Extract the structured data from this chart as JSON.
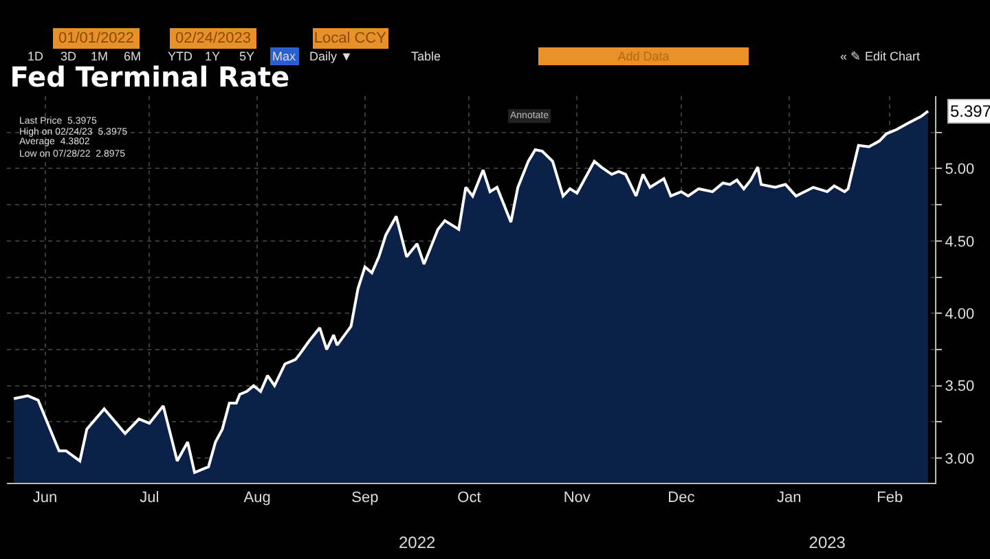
{
  "chart_data": {
    "type": "area",
    "title": "Fed Terminal Rate",
    "x": [
      "2022-06-06",
      "2022-06-10",
      "2022-06-13",
      "2022-06-19",
      "2022-06-21",
      "2022-06-25",
      "2022-06-27",
      "2022-07-02",
      "2022-07-08",
      "2022-07-12",
      "2022-07-15",
      "2022-07-19",
      "2022-07-23",
      "2022-07-26",
      "2022-07-28",
      "2022-08-01",
      "2022-08-03",
      "2022-08-05",
      "2022-08-07",
      "2022-08-09",
      "2022-08-10",
      "2022-08-12",
      "2022-08-14",
      "2022-08-16",
      "2022-08-18",
      "2022-08-20",
      "2022-08-23",
      "2022-08-26",
      "2022-08-27",
      "2022-08-30",
      "2022-09-02",
      "2022-09-04",
      "2022-09-06",
      "2022-09-07",
      "2022-09-11",
      "2022-09-13",
      "2022-09-15",
      "2022-09-17",
      "2022-09-19",
      "2022-09-21",
      "2022-09-24",
      "2022-09-27",
      "2022-09-30",
      "2022-10-02",
      "2022-10-06",
      "2022-10-08",
      "2022-10-12",
      "2022-10-14",
      "2022-10-16",
      "2022-10-19",
      "2022-10-21",
      "2022-10-23",
      "2022-10-27",
      "2022-10-29",
      "2022-11-01",
      "2022-11-03",
      "2022-11-05",
      "2022-11-08",
      "2022-11-11",
      "2022-11-13",
      "2022-11-15",
      "2022-11-20",
      "2022-11-22",
      "2022-11-25",
      "2022-11-27",
      "2022-11-29",
      "2022-12-02",
      "2022-12-04",
      "2022-12-06",
      "2022-12-10",
      "2022-12-12",
      "2022-12-15",
      "2022-12-17",
      "2022-12-20",
      "2022-12-24",
      "2022-12-27",
      "2022-12-29",
      "2022-12-31",
      "2023-01-02",
      "2023-01-04",
      "2023-01-06",
      "2023-01-07",
      "2023-01-11",
      "2023-01-14",
      "2023-01-17",
      "2023-01-22",
      "2023-01-26",
      "2023-01-28",
      "2023-01-31",
      "2023-02-01",
      "2023-02-04",
      "2023-02-07",
      "2023-02-10",
      "2023-02-12",
      "2023-02-15",
      "2023-02-18",
      "2023-02-22",
      "2023-02-24"
    ],
    "series": [
      {
        "color": "#ffffff",
        "values": [
          3.41,
          3.43,
          3.4,
          3.05,
          3.05,
          2.98,
          3.2,
          3.34,
          3.17,
          3.27,
          3.24,
          3.36,
          2.98,
          3.11,
          2.9,
          2.94,
          3.11,
          3.2,
          3.38,
          3.38,
          3.44,
          3.46,
          3.5,
          3.46,
          3.57,
          3.5,
          3.65,
          3.68,
          3.71,
          3.81,
          3.9,
          3.75,
          3.85,
          3.78,
          3.91,
          4.17,
          4.32,
          4.28,
          4.39,
          4.54,
          4.67,
          4.39,
          4.48,
          4.34,
          4.58,
          4.64,
          4.58,
          4.87,
          4.81,
          4.99,
          4.84,
          4.87,
          4.63,
          4.87,
          5.05,
          5.13,
          5.12,
          5.05,
          4.81,
          4.86,
          4.83,
          5.05,
          5.01,
          4.96,
          4.98,
          4.96,
          4.81,
          4.96,
          4.87,
          4.93,
          4.81,
          4.84,
          4.81,
          4.86,
          4.84,
          4.9,
          4.89,
          4.92,
          4.86,
          4.92,
          5.01,
          4.89,
          4.87,
          4.89,
          4.81,
          4.87,
          4.84,
          4.88,
          4.84,
          4.86,
          5.16,
          5.15,
          5.19,
          5.24,
          5.27,
          5.31,
          5.36,
          5.397
        ]
      }
    ],
    "xlim": [
      "2022-06-04",
      "2023-02-26"
    ],
    "xticks": [
      {
        "value": "2022-06-15",
        "label": "Jun"
      },
      {
        "value": "2022-07-15",
        "label": "Jul"
      },
      {
        "value": "2022-08-15",
        "label": "Aug"
      },
      {
        "value": "2022-09-15",
        "label": "Sep"
      },
      {
        "value": "2022-10-15",
        "label": "Oct"
      },
      {
        "value": "2022-11-15",
        "label": "Nov"
      },
      {
        "value": "2022-12-15",
        "label": "Dec"
      },
      {
        "value": "2023-01-15",
        "label": "Jan"
      },
      {
        "value": "2023-02-13",
        "label": "Feb"
      }
    ],
    "ylim": [
      2.83,
      5.5
    ],
    "yticks": [
      {
        "value": 3.0,
        "label": "3.00"
      },
      {
        "value": 3.25,
        "label": null
      },
      {
        "value": 3.5,
        "label": "3.50"
      },
      {
        "value": 3.75,
        "label": null
      },
      {
        "value": 4.0,
        "label": "4.00"
      },
      {
        "value": 4.25,
        "label": null
      },
      {
        "value": 4.5,
        "label": "4.50"
      },
      {
        "value": 4.75,
        "label": null
      },
      {
        "value": 5.0,
        "label": "5.00"
      },
      {
        "value": 5.25,
        "label": null
      }
    ],
    "x2lim": [
      "2022-06-04",
      "2023-02-26"
    ],
    "x2ticks": [
      {
        "value": "2022-09-30",
        "label": "2022"
      },
      {
        "value": "2023-01-26",
        "label": "2023"
      }
    ],
    "grid": true,
    "marker": "none",
    "line_style": "solid",
    "annotations": [
      "01/01/2022",
      "02/24/2023",
      "Local CCY",
      "1D",
      "3D",
      "1M",
      "6M",
      "YTD",
      "1Y",
      "5Y",
      "Max",
      "Daily ▼",
      "Table",
      "Add Data",
      "« ✎ Edit Chart",
      "Annotate",
      "Last Price  5.3975",
      "High on 02/24/23  5.3975",
      "Average  4.3802",
      "Low on 07/28/22  2.8975",
      {
        "text": "5.397",
        "x": "2023-02-24",
        "y": 5.397
      }
    ]
  }
}
